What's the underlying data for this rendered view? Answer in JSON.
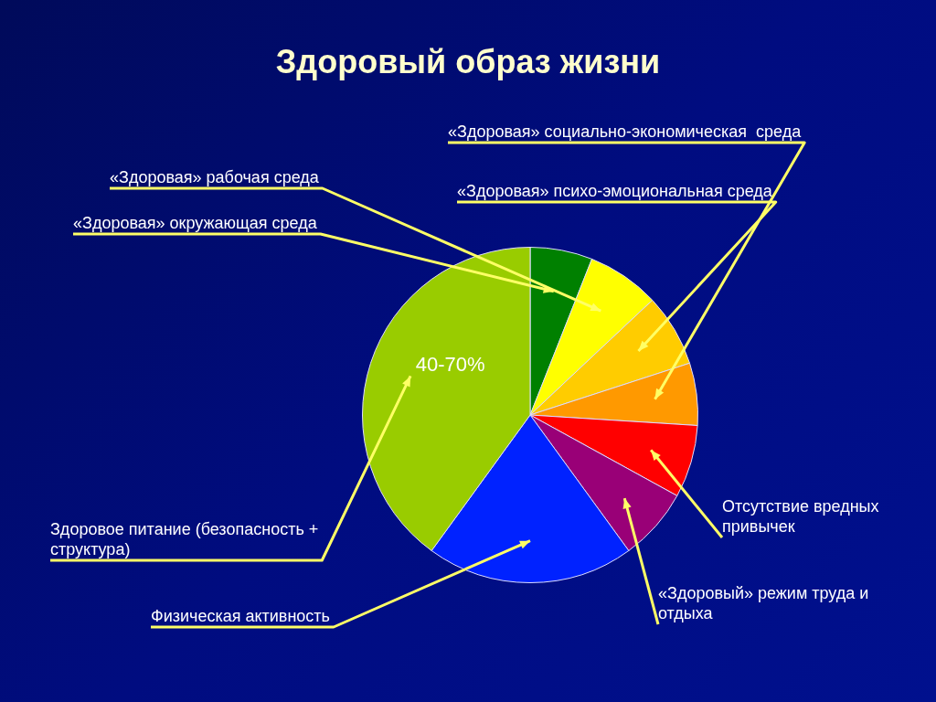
{
  "chart_data": {
    "type": "pie",
    "title": "Здоровый образ жизни",
    "categories": [
      "«Здоровая» окружающая среда",
      "«Здоровая» рабочая среда",
      "«Здоровая» психо-эмоциональная среда",
      "«Здоровая» социально-экономическая  среда",
      "Отсутствие вредных привычек",
      "«Здоровый» режим труда и отдыха",
      "Физическая активность",
      "Здоровое питание (безопасность + структура)"
    ],
    "values": [
      6,
      7,
      7,
      6,
      7,
      7,
      20,
      40
    ],
    "colors": [
      "#008000",
      "#ffff00",
      "#ffcc00",
      "#ff9900",
      "#ff0000",
      "#990077",
      "#0022ff",
      "#99cc00"
    ],
    "value_labels": [
      null,
      null,
      null,
      null,
      null,
      null,
      null,
      "40-70%"
    ],
    "legend": false
  }
}
